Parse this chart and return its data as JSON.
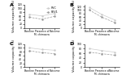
{
  "panels": [
    {
      "label": "A",
      "fev1": [
        55,
        45,
        60
      ],
      "fvc": [
        70,
        62,
        75
      ],
      "ylim": [
        0,
        120
      ],
      "yticks": [
        0,
        20,
        40,
        60,
        80,
        100,
        120
      ],
      "show_legend": true
    },
    {
      "label": "B",
      "fev1": [
        100,
        60,
        30
      ],
      "fvc": [
        115,
        75,
        45
      ],
      "ylim": [
        0,
        130
      ],
      "yticks": [
        0,
        20,
        40,
        60,
        80,
        100,
        120
      ],
      "show_legend": false
    },
    {
      "label": "C",
      "fev1": [
        85,
        75,
        70
      ],
      "fvc": [
        100,
        92,
        88
      ],
      "ylim": [
        0,
        120
      ],
      "yticks": [
        0,
        20,
        40,
        60,
        80,
        100,
        120
      ],
      "show_legend": false
    },
    {
      "label": "D",
      "fev1": [
        65,
        58,
        52
      ],
      "fvc": [
        80,
        72,
        65
      ],
      "ylim": [
        0,
        100
      ],
      "yticks": [
        0,
        20,
        40,
        60,
        80,
        100
      ],
      "show_legend": false
    }
  ],
  "xtick_labels": [
    "Baseline",
    "Presence of\nM. chimaera",
    "Outcome"
  ],
  "fev1_color": "#999999",
  "fvc_color": "#cccccc",
  "fev1_style": "--",
  "fvc_style": "-",
  "ylabel": "Volume capacity (%)",
  "title_fontsize": 4.5,
  "axis_fontsize": 2.8,
  "tick_fontsize": 2.2,
  "legend_fontsize": 2.5,
  "line_width": 0.5,
  "marker_size": 0.8,
  "background": "#ffffff"
}
